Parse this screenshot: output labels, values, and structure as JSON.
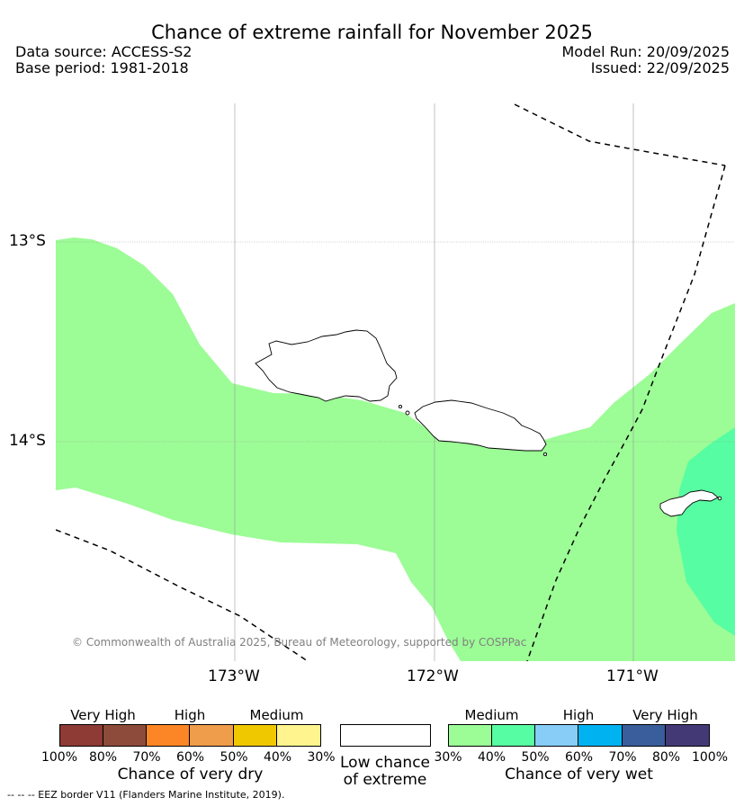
{
  "header": {
    "title": "Chance of extreme rainfall for November 2025",
    "data_source": "Data source: ACCESS-S2",
    "base_period": "Base period: 1981-2018",
    "model_run": "Model Run: 20/09/2025",
    "issued": "Issued: 22/09/2025"
  },
  "map": {
    "lat_labels": [
      "13°S",
      "14°S"
    ],
    "lon_labels": [
      "173°W",
      "172°W",
      "171°W"
    ],
    "copyright": "© Commonwealth of Australia 2025, Bureau of Meteorology, supported by COSPPac",
    "colors": {
      "medium_wet": "#9cfc96",
      "high_wet": "#57fda2",
      "eez_line": "#000000",
      "grid": "#9a9a9a",
      "coast": "#000000"
    }
  },
  "legend": {
    "dry": {
      "headers": [
        "Very High",
        "High",
        "Medium"
      ],
      "colors": [
        "#8e3a35",
        "#8d4b3b",
        "#fc8625",
        "#ef9c4b",
        "#f0c800",
        "#fff48e"
      ],
      "ticks": [
        "100%",
        "80%",
        "70%",
        "60%",
        "50%",
        "40%",
        "30%"
      ],
      "title": "Chance of very dry"
    },
    "neutral": {
      "line1": "Low chance",
      "line2": "of extreme",
      "color": "#ffffff"
    },
    "wet": {
      "headers": [
        "Medium",
        "High",
        "Very High"
      ],
      "colors": [
        "#9cfc96",
        "#57fda2",
        "#87cdf8",
        "#00b2ef",
        "#3a5d9b",
        "#433a75"
      ],
      "ticks": [
        "30%",
        "40%",
        "50%",
        "60%",
        "70%",
        "80%",
        "100%"
      ],
      "title": "Chance of very wet"
    }
  },
  "footer": {
    "eez": "--  --  -- EEZ border V11 (Flanders Marine Institute, 2019)."
  }
}
